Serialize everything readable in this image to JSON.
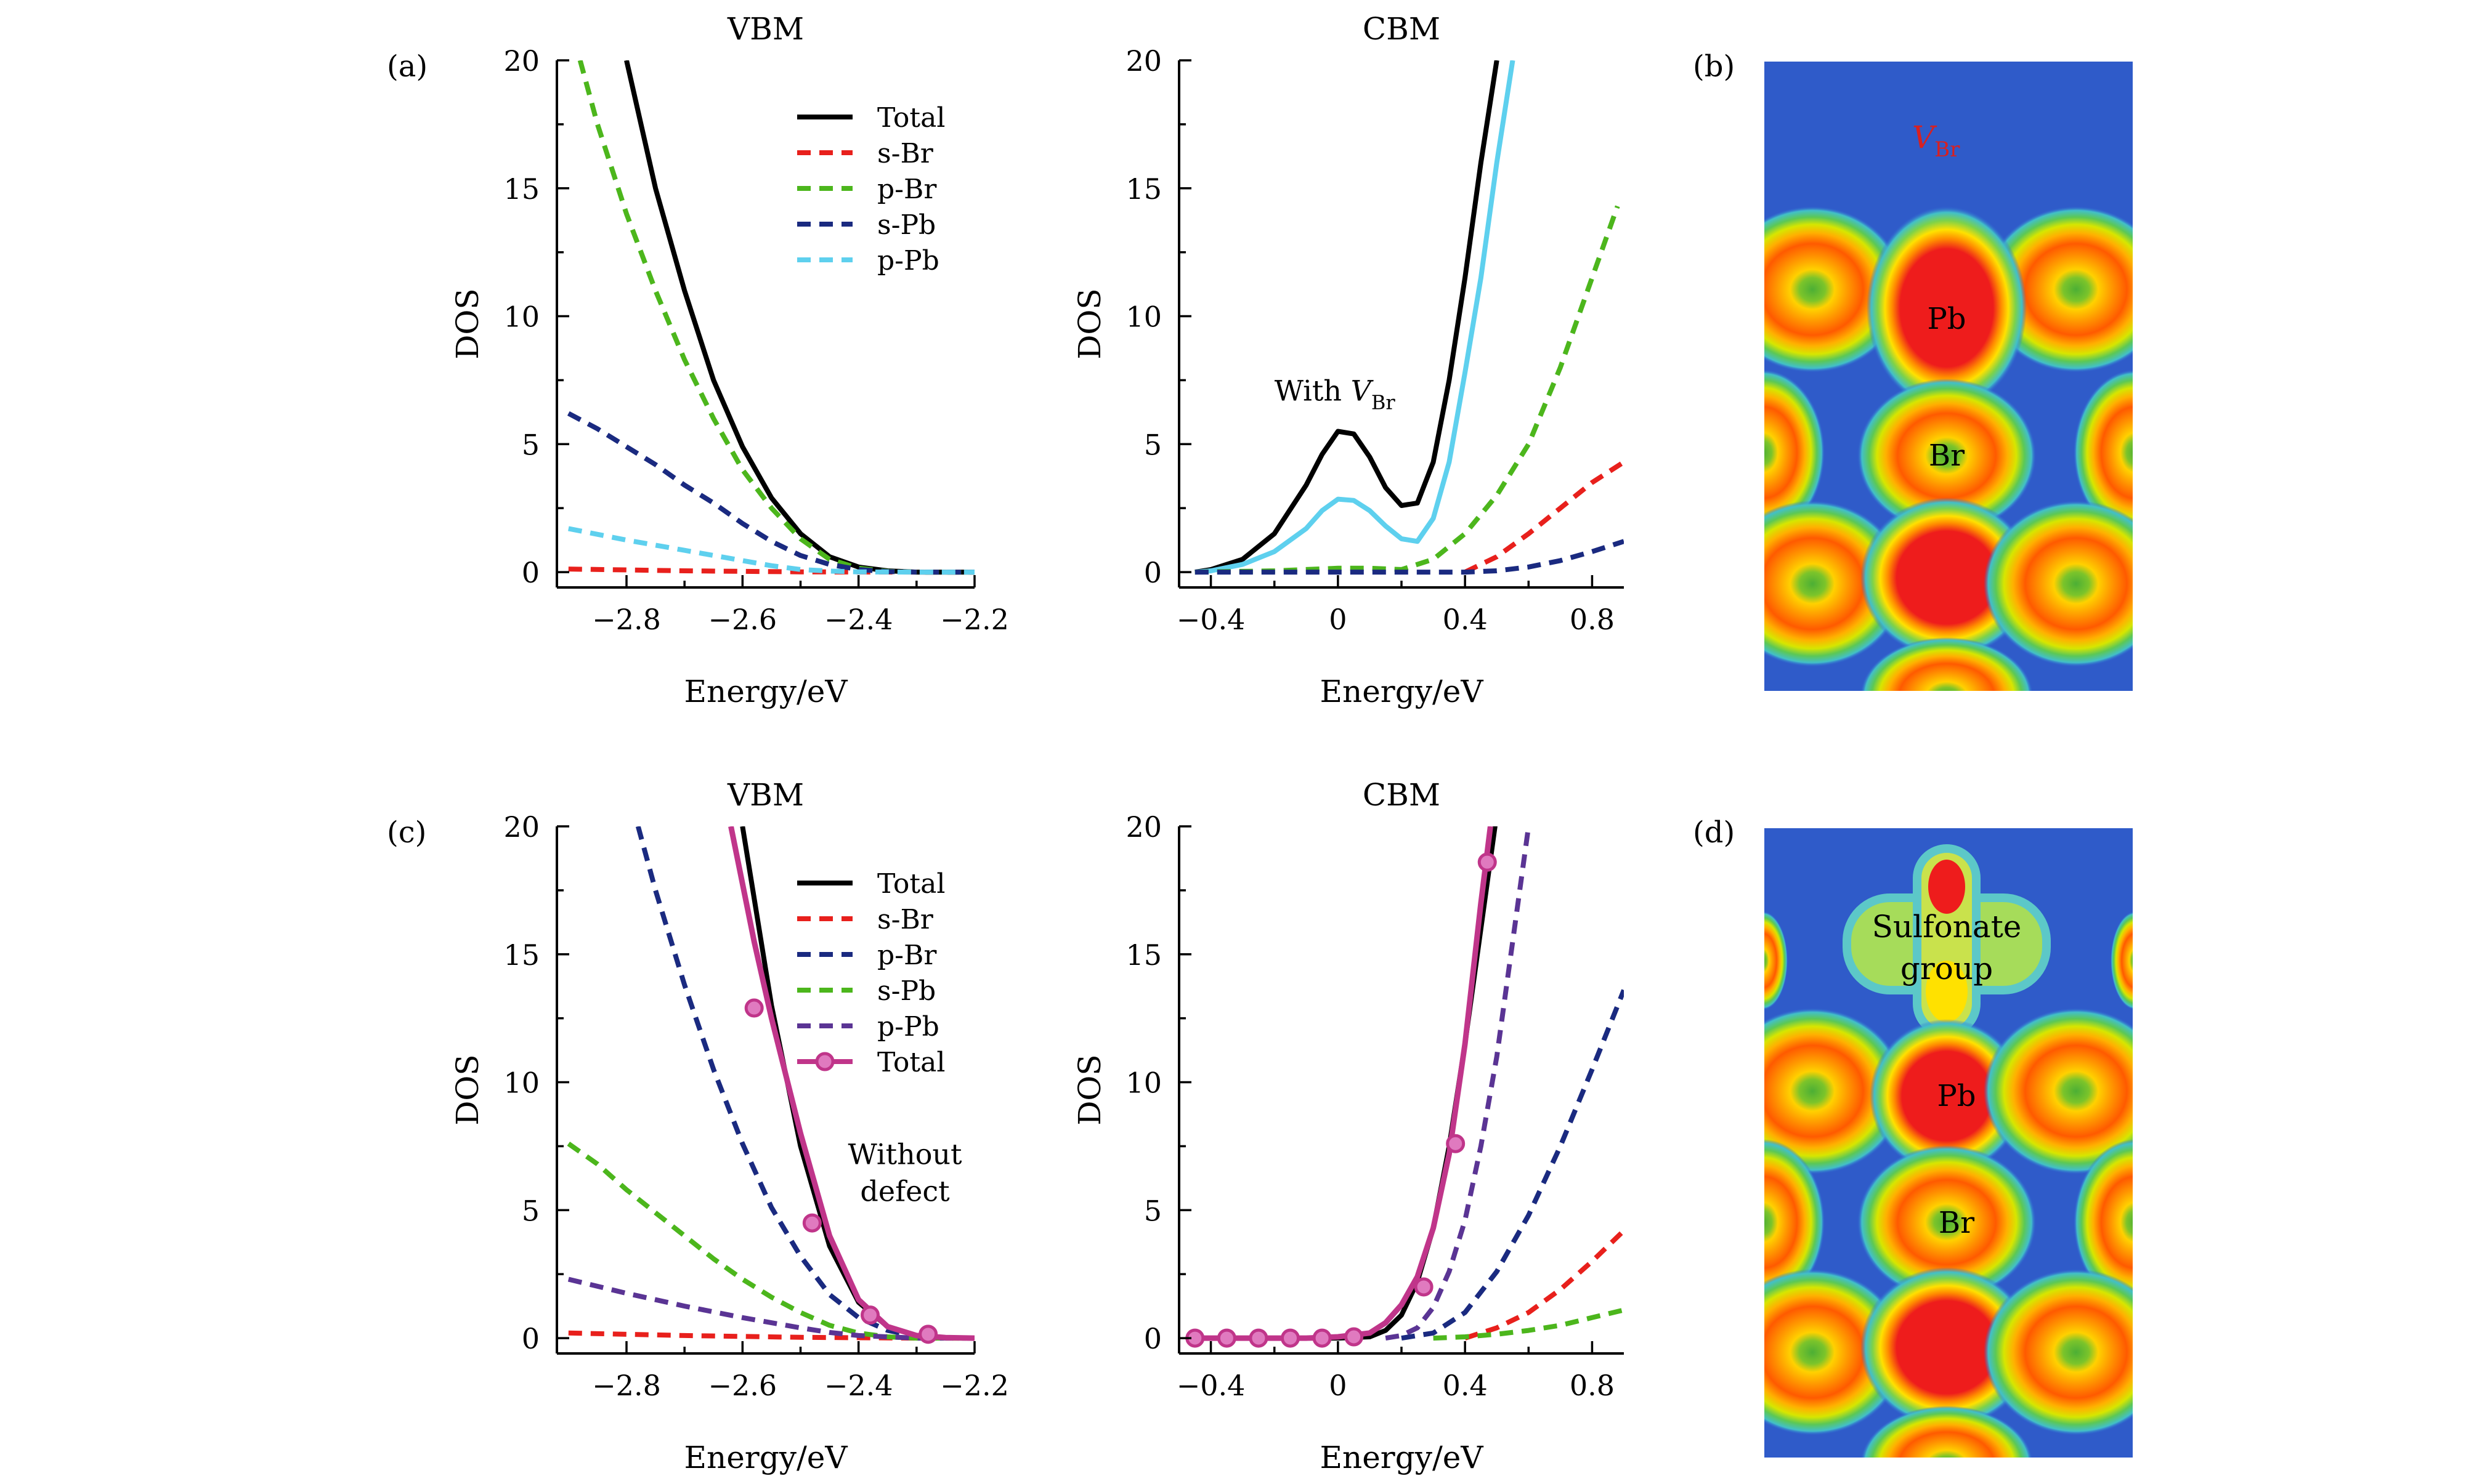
{
  "figure": {
    "panel_labels": [
      "(a)",
      "(b)",
      "(c)",
      "(d)"
    ]
  },
  "chart_data": [
    {
      "id": "a-vbm",
      "panel_label": "(a)",
      "type": "line",
      "title": "VBM",
      "xlabel": "Energy/eV",
      "ylabel": "DOS",
      "xlim": [
        -2.92,
        -2.2
      ],
      "ylim": [
        -0.6,
        20
      ],
      "xticks": [
        -2.8,
        -2.6,
        -2.4,
        -2.2
      ],
      "xtick_labels": [
        "−2.8",
        "−2.6",
        "−2.4",
        "−2.2"
      ],
      "yticks": [
        0,
        5,
        10,
        15,
        20
      ],
      "ytick_labels": [
        "0",
        "5",
        "10",
        "15",
        "20"
      ],
      "legend_position": "top-right",
      "series": [
        {
          "name": "Total",
          "color": "#000000",
          "style": "solid",
          "x": [
            -2.8,
            -2.75,
            -2.7,
            -2.65,
            -2.6,
            -2.55,
            -2.5,
            -2.45,
            -2.4,
            -2.35,
            -2.3,
            -2.25,
            -2.2
          ],
          "y": [
            20,
            15,
            11,
            7.5,
            4.9,
            2.9,
            1.5,
            0.6,
            0.2,
            0.05,
            0,
            0,
            0
          ]
        },
        {
          "name": "s-Br",
          "color": "#e8201c",
          "style": "dashed",
          "x": [
            -2.9,
            -2.7,
            -2.5,
            -2.3,
            -2.2
          ],
          "y": [
            0.12,
            0.05,
            0.01,
            0,
            0
          ]
        },
        {
          "name": "p-Br",
          "color": "#4cb61c",
          "style": "dashed",
          "x": [
            -2.88,
            -2.85,
            -2.8,
            -2.75,
            -2.7,
            -2.65,
            -2.6,
            -2.55,
            -2.5,
            -2.45,
            -2.4,
            -2.35,
            -2.3,
            -2.2
          ],
          "y": [
            20,
            17.5,
            14,
            11,
            8.3,
            6,
            4,
            2.5,
            1.3,
            0.5,
            0.15,
            0.03,
            0,
            0
          ]
        },
        {
          "name": "s-Pb",
          "color": "#1a2a80",
          "style": "dashed",
          "x": [
            -2.9,
            -2.85,
            -2.8,
            -2.75,
            -2.7,
            -2.65,
            -2.6,
            -2.55,
            -2.5,
            -2.45,
            -2.4,
            -2.35,
            -2.3,
            -2.2
          ],
          "y": [
            6.2,
            5.6,
            4.9,
            4.2,
            3.4,
            2.7,
            1.9,
            1.2,
            0.65,
            0.3,
            0.1,
            0.02,
            0,
            0
          ]
        },
        {
          "name": "p-Pb",
          "color": "#5ed0ee",
          "style": "dashed",
          "x": [
            -2.9,
            -2.8,
            -2.7,
            -2.6,
            -2.55,
            -2.5,
            -2.45,
            -2.4,
            -2.3,
            -2.2
          ],
          "y": [
            1.7,
            1.25,
            0.85,
            0.45,
            0.25,
            0.1,
            0.04,
            0.01,
            0,
            0
          ]
        }
      ]
    },
    {
      "id": "a-cbm",
      "type": "line",
      "title": "CBM",
      "xlabel": "Energy/eV",
      "ylabel": "DOS",
      "xlim": [
        -0.5,
        0.9
      ],
      "ylim": [
        -0.6,
        20
      ],
      "xticks": [
        -0.4,
        0,
        0.4,
        0.8
      ],
      "xtick_labels": [
        "−0.4",
        "0",
        "0.4",
        "0.8"
      ],
      "yticks": [
        0,
        5,
        10,
        15,
        20
      ],
      "ytick_labels": [
        "0",
        "5",
        "10",
        "15",
        "20"
      ],
      "annotation": {
        "text": "With ",
        "italic": "V",
        "sub": "Br",
        "x": -0.2,
        "y": 6.7
      },
      "series": [
        {
          "name": "Total",
          "color": "#000000",
          "style": "solid",
          "x": [
            -0.45,
            -0.4,
            -0.3,
            -0.2,
            -0.1,
            -0.05,
            0,
            0.05,
            0.1,
            0.15,
            0.2,
            0.25,
            0.3,
            0.35,
            0.4,
            0.45,
            0.5
          ],
          "y": [
            0,
            0.1,
            0.5,
            1.5,
            3.4,
            4.6,
            5.5,
            5.4,
            4.5,
            3.3,
            2.6,
            2.7,
            4.3,
            7.5,
            11.5,
            16,
            20
          ]
        },
        {
          "name": "p-Pb",
          "color": "#5ed0ee",
          "style": "solid",
          "x": [
            -0.45,
            -0.4,
            -0.3,
            -0.2,
            -0.1,
            -0.05,
            0,
            0.05,
            0.1,
            0.15,
            0.2,
            0.25,
            0.3,
            0.35,
            0.4,
            0.45,
            0.5,
            0.55
          ],
          "y": [
            0,
            0.05,
            0.3,
            0.8,
            1.7,
            2.4,
            2.85,
            2.8,
            2.4,
            1.8,
            1.3,
            1.2,
            2.1,
            4.3,
            7.8,
            11.5,
            16,
            20
          ]
        },
        {
          "name": "p-Br",
          "color": "#4cb61c",
          "style": "dashed",
          "x": [
            -0.45,
            -0.2,
            0,
            0.1,
            0.2,
            0.3,
            0.4,
            0.5,
            0.6,
            0.7,
            0.8,
            0.88
          ],
          "y": [
            0,
            0.05,
            0.15,
            0.15,
            0.1,
            0.5,
            1.5,
            3,
            5,
            8,
            11.5,
            14.3
          ]
        },
        {
          "name": "s-Br",
          "color": "#e8201c",
          "style": "dashed",
          "x": [
            0.4,
            0.5,
            0.6,
            0.7,
            0.8,
            0.9
          ],
          "y": [
            0,
            0.6,
            1.5,
            2.5,
            3.5,
            4.3
          ]
        },
        {
          "name": "s-Pb",
          "color": "#1a2a80",
          "style": "dashed",
          "x": [
            -0.45,
            0,
            0.4,
            0.5,
            0.6,
            0.7,
            0.8,
            0.9
          ],
          "y": [
            0,
            0,
            0,
            0.05,
            0.2,
            0.45,
            0.8,
            1.2
          ]
        }
      ]
    },
    {
      "id": "c-vbm",
      "panel_label": "(c)",
      "type": "line",
      "title": "VBM",
      "xlabel": "Energy/eV",
      "ylabel": "DOS",
      "xlim": [
        -2.92,
        -2.2
      ],
      "ylim": [
        -0.6,
        20
      ],
      "xticks": [
        -2.8,
        -2.6,
        -2.4,
        -2.2
      ],
      "xtick_labels": [
        "−2.8",
        "−2.6",
        "−2.4",
        "−2.2"
      ],
      "yticks": [
        0,
        5,
        10,
        15,
        20
      ],
      "ytick_labels": [
        "0",
        "5",
        "10",
        "15",
        "20"
      ],
      "legend_position": "top-right",
      "annotation": {
        "lines": [
          "Without",
          "defect"
        ],
        "x": -2.32,
        "y": 6.8
      },
      "series": [
        {
          "name": "Total",
          "color": "#000000",
          "style": "solid",
          "x": [
            -2.6,
            -2.55,
            -2.5,
            -2.45,
            -2.4,
            -2.35,
            -2.3,
            -2.25,
            -2.2
          ],
          "y": [
            20,
            13,
            7.5,
            3.6,
            1.4,
            0.45,
            0.1,
            0.02,
            0
          ]
        },
        {
          "name": "s-Br",
          "color": "#e8201c",
          "style": "dashed",
          "x": [
            -2.9,
            -2.7,
            -2.5,
            -2.3,
            -2.2
          ],
          "y": [
            0.2,
            0.1,
            0.03,
            0,
            0
          ]
        },
        {
          "name": "p-Br",
          "color": "#1a2a80",
          "style": "dashed",
          "x": [
            -2.78,
            -2.75,
            -2.7,
            -2.65,
            -2.6,
            -2.55,
            -2.5,
            -2.45,
            -2.4,
            -2.35,
            -2.3,
            -2.25,
            -2.2
          ],
          "y": [
            20,
            17.5,
            13.8,
            10.5,
            7.6,
            5.1,
            3.2,
            1.7,
            0.8,
            0.3,
            0.08,
            0.01,
            0
          ]
        },
        {
          "name": "s-Pb",
          "color": "#4cb61c",
          "style": "dashed",
          "x": [
            -2.9,
            -2.85,
            -2.8,
            -2.75,
            -2.7,
            -2.65,
            -2.6,
            -2.55,
            -2.5,
            -2.45,
            -2.4,
            -2.35,
            -2.3,
            -2.2
          ],
          "y": [
            7.6,
            6.8,
            5.8,
            4.9,
            4.0,
            3.1,
            2.3,
            1.6,
            1.0,
            0.5,
            0.2,
            0.05,
            0,
            0
          ]
        },
        {
          "name": "p-Pb",
          "color": "#5a3494",
          "style": "dashed",
          "x": [
            -2.9,
            -2.8,
            -2.7,
            -2.6,
            -2.5,
            -2.45,
            -2.4,
            -2.3,
            -2.2
          ],
          "y": [
            2.3,
            1.75,
            1.25,
            0.8,
            0.4,
            0.22,
            0.1,
            0,
            0
          ]
        },
        {
          "name": "Total",
          "color": "#c0358a",
          "style": "solid-markers",
          "x": [
            -2.62,
            -2.58,
            -2.55,
            -2.5,
            -2.45,
            -2.4,
            -2.35,
            -2.3,
            -2.25,
            -2.2
          ],
          "y": [
            20,
            15.5,
            12.5,
            8.0,
            4.0,
            1.5,
            0.45,
            0.1,
            0.02,
            0
          ],
          "marker_x": [
            -2.58,
            -2.48,
            -2.38,
            -2.28
          ],
          "marker_y": [
            12.9,
            4.5,
            0.9,
            0.15
          ]
        }
      ]
    },
    {
      "id": "c-cbm",
      "type": "line",
      "title": "CBM",
      "xlabel": "Energy/eV",
      "ylabel": "DOS",
      "xlim": [
        -0.5,
        0.9
      ],
      "ylim": [
        -0.6,
        20
      ],
      "xticks": [
        -0.4,
        0,
        0.4,
        0.8
      ],
      "xtick_labels": [
        "−0.4",
        "0",
        "0.4",
        "0.8"
      ],
      "yticks": [
        0,
        5,
        10,
        15,
        20
      ],
      "ytick_labels": [
        "0",
        "5",
        "10",
        "15",
        "20"
      ],
      "series": [
        {
          "name": "Total",
          "color": "#000000",
          "style": "solid",
          "x": [
            -0.45,
            0,
            0.1,
            0.15,
            0.2,
            0.25,
            0.3,
            0.35,
            0.4,
            0.45,
            0.5
          ],
          "y": [
            0,
            0,
            0.05,
            0.3,
            0.9,
            2.2,
            4.3,
            7.5,
            11.5,
            16,
            20.5
          ]
        },
        {
          "name": "s-Br",
          "color": "#e8201c",
          "style": "dashed",
          "x": [
            0.4,
            0.5,
            0.6,
            0.7,
            0.8,
            0.9
          ],
          "y": [
            0,
            0.4,
            1.0,
            1.9,
            3.0,
            4.2
          ]
        },
        {
          "name": "p-Br",
          "color": "#1a2a80",
          "style": "dashed",
          "x": [
            0.2,
            0.3,
            0.4,
            0.5,
            0.6,
            0.7,
            0.8,
            0.9
          ],
          "y": [
            0,
            0.2,
            1.0,
            2.6,
            4.8,
            7.5,
            10.5,
            13.6
          ]
        },
        {
          "name": "s-Pb",
          "color": "#4cb61c",
          "style": "dashed",
          "x": [
            0.3,
            0.4,
            0.5,
            0.6,
            0.7,
            0.8,
            0.9
          ],
          "y": [
            0,
            0.05,
            0.15,
            0.3,
            0.5,
            0.8,
            1.1
          ]
        },
        {
          "name": "p-Pb",
          "color": "#5a3494",
          "style": "dashed",
          "x": [
            0.15,
            0.2,
            0.25,
            0.3,
            0.35,
            0.4,
            0.45,
            0.5,
            0.55,
            0.6
          ],
          "y": [
            0,
            0.1,
            0.4,
            1.2,
            2.6,
            4.6,
            7.5,
            11,
            15.5,
            20
          ]
        },
        {
          "name": "Total",
          "color": "#c0358a",
          "style": "solid-markers",
          "x": [
            -0.45,
            -0.3,
            -0.1,
            0,
            0.1,
            0.15,
            0.2,
            0.25,
            0.3,
            0.35,
            0.4,
            0.45,
            0.48
          ],
          "y": [
            0,
            0,
            0,
            0.05,
            0.2,
            0.6,
            1.3,
            2.4,
            4.3,
            7.2,
            11.5,
            17,
            20
          ],
          "marker_x": [
            -0.45,
            -0.35,
            -0.25,
            -0.15,
            -0.05,
            0.05,
            0.27,
            0.37,
            0.47
          ],
          "marker_y": [
            0,
            0,
            0,
            0,
            0,
            0.05,
            2.0,
            7.6,
            18.6
          ]
        }
      ]
    }
  ],
  "maps": {
    "b": {
      "label": "(b)",
      "vacancy_label": "V",
      "vacancy_sub": "Br",
      "pb_label": "Pb",
      "br_label": "Br"
    },
    "d": {
      "label": "(d)",
      "group_line1": "Sulfonate",
      "group_line2": "group",
      "pb_label": "Pb",
      "br_label": "Br"
    }
  }
}
